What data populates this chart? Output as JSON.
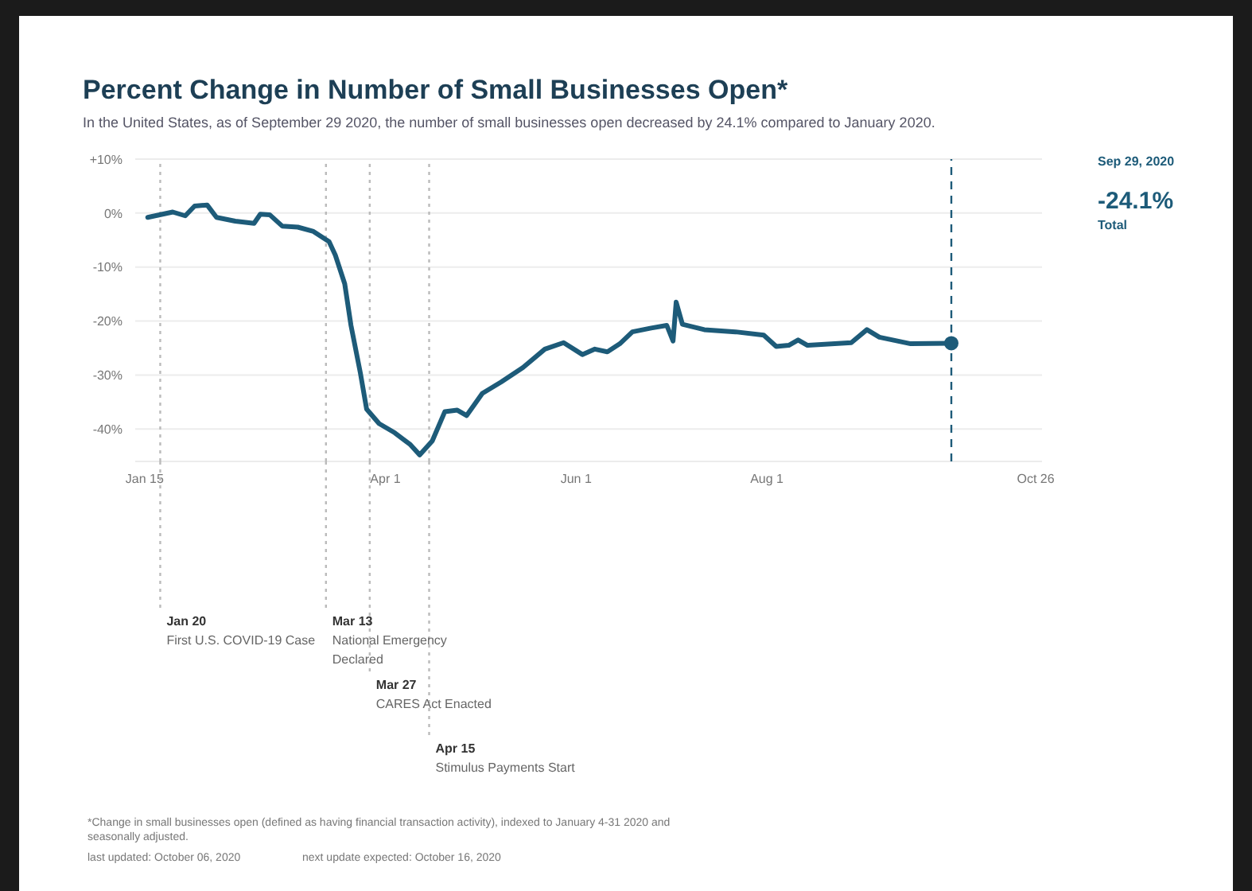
{
  "chart_data": {
    "type": "line",
    "title": "Percent Change in Number of Small Businesses Open*",
    "subtitle": "In the United States, as of September 29 2020, the number of small businesses open decreased by 24.1% compared to January 2020.",
    "xlim": [
      "2020-01-12",
      "2020-10-28"
    ],
    "xticks": [
      {
        "value": "2020-01-15",
        "label": "Jan 15"
      },
      {
        "value": "2020-04-01",
        "label": "Apr 1"
      },
      {
        "value": "2020-06-01",
        "label": "Jun 1"
      },
      {
        "value": "2020-08-01",
        "label": "Aug 1"
      },
      {
        "value": "2020-10-26",
        "label": "Oct 26"
      }
    ],
    "ylim": [
      -46,
      10
    ],
    "yticks": [
      {
        "value": 10,
        "label": "+10%"
      },
      {
        "value": 0,
        "label": "0%"
      },
      {
        "value": -10,
        "label": "-10%"
      },
      {
        "value": -20,
        "label": "-20%"
      },
      {
        "value": -30,
        "label": "-30%"
      },
      {
        "value": -40,
        "label": "-40%"
      }
    ],
    "grid": "y",
    "series": [
      {
        "color": "#1d5b79",
        "x": [
          "2020-01-16",
          "2020-01-24",
          "2020-01-28",
          "2020-01-31",
          "2020-02-04",
          "2020-02-07",
          "2020-02-13",
          "2020-02-19",
          "2020-02-21",
          "2020-02-24",
          "2020-02-28",
          "2020-03-04",
          "2020-03-09",
          "2020-03-14",
          "2020-03-16",
          "2020-03-19",
          "2020-03-21",
          "2020-03-24",
          "2020-03-26",
          "2020-03-30",
          "2020-04-04",
          "2020-04-09",
          "2020-04-12",
          "2020-04-16",
          "2020-04-20",
          "2020-04-24",
          "2020-04-27",
          "2020-05-02",
          "2020-05-08",
          "2020-05-15",
          "2020-05-22",
          "2020-05-28",
          "2020-06-03",
          "2020-06-07",
          "2020-06-11",
          "2020-06-15",
          "2020-06-19",
          "2020-06-25",
          "2020-06-30",
          "2020-07-02",
          "2020-07-03",
          "2020-07-05",
          "2020-07-12",
          "2020-07-22",
          "2020-07-31",
          "2020-08-04",
          "2020-08-08",
          "2020-08-11",
          "2020-08-14",
          "2020-08-28",
          "2020-09-02",
          "2020-09-06",
          "2020-09-16",
          "2020-09-29"
        ],
        "values": [
          -0.8,
          0.2,
          -0.5,
          1.3,
          1.5,
          -0.8,
          -1.5,
          -1.9,
          -0.2,
          -0.3,
          -2.4,
          -2.6,
          -3.4,
          -5.3,
          -7.8,
          -13.1,
          -20.8,
          -29.6,
          -36.3,
          -39,
          -40.7,
          -42.9,
          -44.8,
          -42.2,
          -36.8,
          -36.5,
          -37.5,
          -33.4,
          -31.3,
          -28.6,
          -25.2,
          -24,
          -26.2,
          -25.2,
          -25.7,
          -24.2,
          -22,
          -21.3,
          -20.8,
          -23.7,
          -16.5,
          -20.6,
          -21.6,
          -22,
          -22.6,
          -24.7,
          -24.5,
          -23.5,
          -24.5,
          -24,
          -21.6,
          -23,
          -24.2,
          -24.1
        ]
      },
      {
        "type": "scatter",
        "color": "#1d5b79",
        "x": [
          "2020-09-29"
        ],
        "values": [
          -24.1
        ]
      }
    ],
    "ref_lines": [
      {
        "axis": "x",
        "value": "2020-01-20",
        "label": "Jan 20\nFirst U.S. COVID-19 Case",
        "color": "#bbbbbb",
        "line_style": "dotted"
      },
      {
        "axis": "x",
        "value": "2020-03-13",
        "label": "Mar 13\nNational Emergency Declared",
        "color": "#bbbbbb",
        "line_style": "dotted"
      },
      {
        "axis": "x",
        "value": "2020-03-27",
        "label": "Mar 27\nCARES Act Enacted",
        "color": "#bbbbbb",
        "line_style": "dotted"
      },
      {
        "axis": "x",
        "value": "2020-04-15",
        "label": "Apr 15\nStimulus Payments Start",
        "color": "#bbbbbb",
        "line_style": "dotted"
      },
      {
        "axis": "x",
        "value": "2020-09-29",
        "color": "#1d5b79",
        "line_style": "dashed"
      }
    ],
    "annotations": [
      "Sep 29, 2020",
      "-24.1%",
      "Total",
      "*Change in small businesses open (defined as having financial transaction activity), indexed to January 4-31 2020 and seasonally adjusted.",
      "last updated: October 06, 2020",
      "next update expected: October 16, 2020"
    ]
  }
}
